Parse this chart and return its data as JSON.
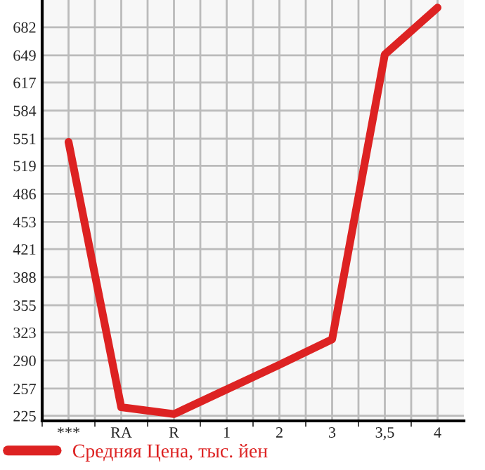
{
  "chart_data": {
    "type": "line",
    "categories": [
      "***",
      "RA",
      "R",
      "1",
      "2",
      "3",
      "3,5",
      "4"
    ],
    "series": [
      {
        "name": "Средняя Цена, тыс. йен",
        "color": "#dd2222",
        "values": [
          547,
          235,
          227,
          256,
          285,
          315,
          650,
          705
        ]
      }
    ],
    "ylim": [
      219,
      714
    ],
    "yticks": [
      225,
      257,
      290,
      323,
      355,
      388,
      421,
      453,
      486,
      519,
      551,
      584,
      617,
      649,
      682
    ],
    "grid": true,
    "legend": "bottom",
    "marker": "none",
    "line_style": "solid"
  }
}
